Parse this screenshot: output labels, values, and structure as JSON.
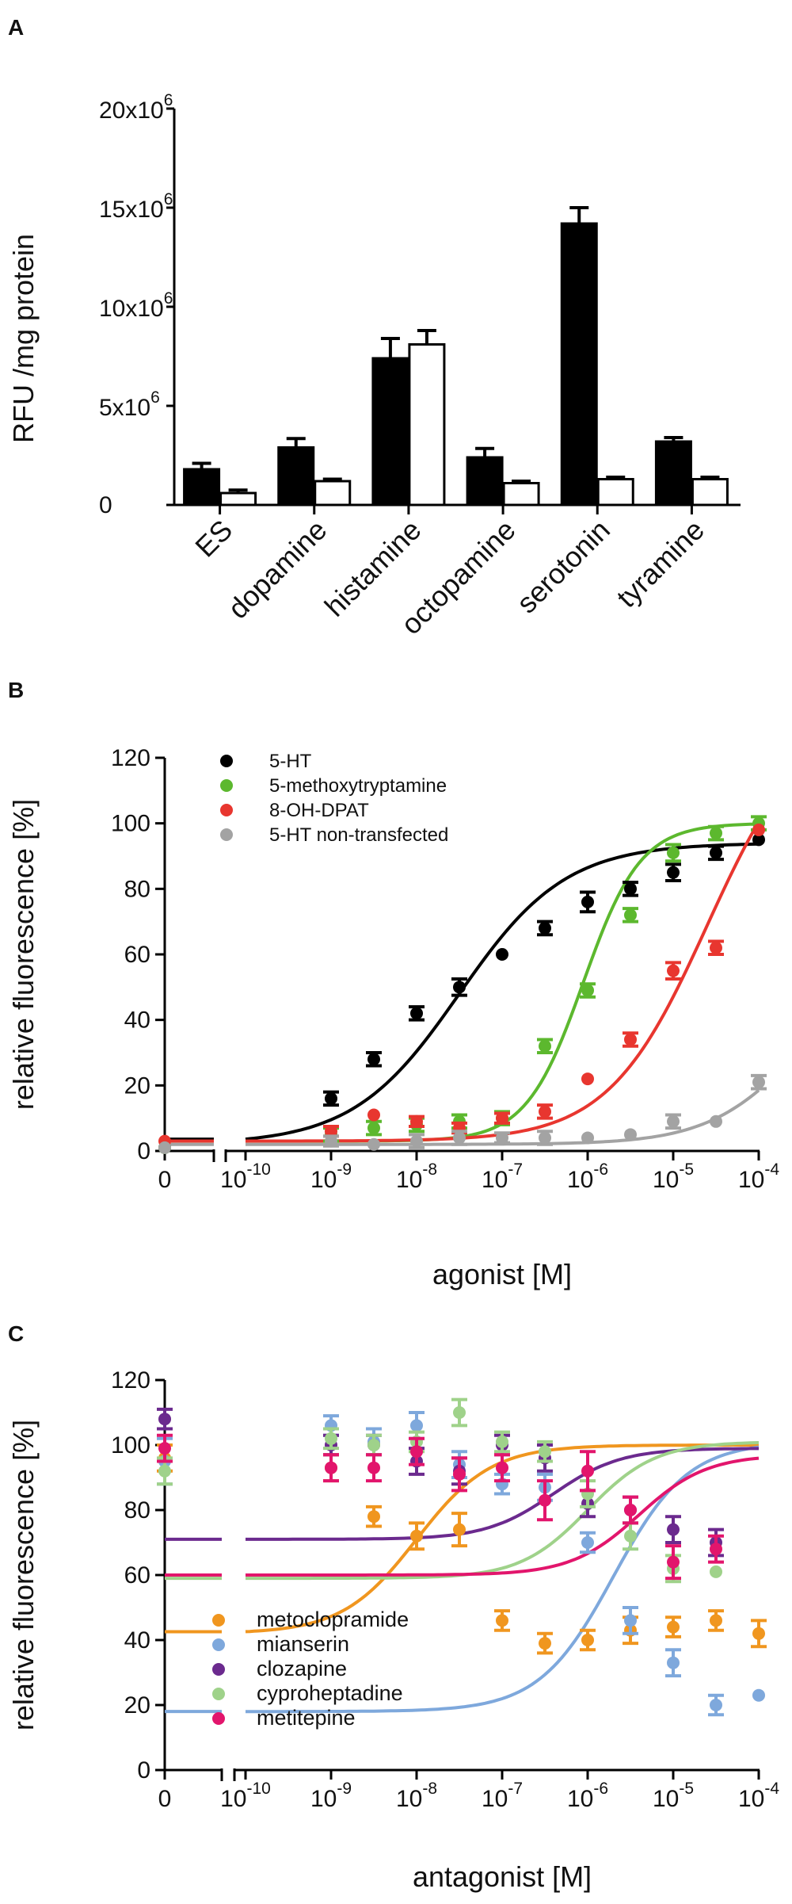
{
  "chart_data": [
    {
      "panel": "A",
      "type": "bar",
      "ylabel": "RFU /mg protein",
      "yticks": [
        {
          "value": 0,
          "base": "0",
          "exp": ""
        },
        {
          "value": 5000000,
          "base": "5x10",
          "exp": "6"
        },
        {
          "value": 10000000,
          "base": "10x10",
          "exp": "6"
        },
        {
          "value": 15000000,
          "base": "15x10",
          "exp": "6"
        },
        {
          "value": 20000000,
          "base": "20x10",
          "exp": "6"
        }
      ],
      "ylim": [
        0,
        20000000
      ],
      "categories": [
        "ES",
        "dopamine",
        "histamine",
        "octopamine",
        "serotonin",
        "tyramine"
      ],
      "series": [
        {
          "name": "filled",
          "color": "#000000",
          "values": [
            1800000,
            2900000,
            7400000,
            2400000,
            14200000,
            3200000
          ],
          "errors": [
            300000,
            450000,
            1000000,
            450000,
            800000,
            200000
          ]
        },
        {
          "name": "open",
          "color": "#ffffff",
          "values": [
            600000,
            1200000,
            8100000,
            1100000,
            1300000,
            1300000
          ],
          "errors": [
            150000,
            100000,
            700000,
            100000,
            100000,
            100000
          ]
        }
      ]
    },
    {
      "panel": "B",
      "type": "scatter",
      "xlabel": "agonist [M]",
      "ylabel": "relative fluorescence [%]",
      "ylim": [
        0,
        120
      ],
      "yticks": [
        "0",
        "20",
        "40",
        "60",
        "80",
        "100",
        "120"
      ],
      "xticks": [
        {
          "base": "0",
          "exp": ""
        },
        {
          "base": "10",
          "exp": "-10"
        },
        {
          "base": "10",
          "exp": "-9"
        },
        {
          "base": "10",
          "exp": "-8"
        },
        {
          "base": "10",
          "exp": "-7"
        },
        {
          "base": "10",
          "exp": "-6"
        },
        {
          "base": "10",
          "exp": "-5"
        },
        {
          "base": "10",
          "exp": "-4"
        }
      ],
      "xlim_log10": [
        -10,
        -4
      ],
      "series": [
        {
          "name": "5-HT",
          "color": "#000000",
          "points": [
            [
              0,
              1,
              0
            ],
            [
              -9,
              16,
              2
            ],
            [
              -8.5,
              28,
              2
            ],
            [
              -8,
              42,
              2
            ],
            [
              -7.5,
              50,
              2.5
            ],
            [
              -7,
              60,
              0
            ],
            [
              -6.5,
              68,
              2
            ],
            [
              -6,
              76,
              3
            ],
            [
              -5.5,
              80,
              2
            ],
            [
              -5,
              85,
              2.5
            ],
            [
              -4.5,
              91,
              2
            ],
            [
              -4,
              95,
              0
            ]
          ],
          "fit": {
            "bottom": 2,
            "top": 94,
            "log_ec50": -7.5,
            "hill": 0.7
          }
        },
        {
          "name": "5-methoxytryptamine",
          "color": "#5cb82e",
          "points": [
            [
              0,
              1,
              0
            ],
            [
              -9,
              5,
              2
            ],
            [
              -8.5,
              7,
              2
            ],
            [
              -8,
              8,
              2
            ],
            [
              -7.5,
              9,
              2
            ],
            [
              -7,
              10,
              2
            ],
            [
              -6.5,
              32,
              2
            ],
            [
              -6,
              49,
              2
            ],
            [
              -5.5,
              72,
              2
            ],
            [
              -5,
              91,
              2.5
            ],
            [
              -4.5,
              97,
              2
            ],
            [
              -4,
              100,
              2
            ]
          ],
          "fit": {
            "bottom": 3,
            "top": 100,
            "log_ec50": -6.05,
            "hill": 1.3
          }
        },
        {
          "name": "8-OH-DPAT",
          "color": "#e8362f",
          "points": [
            [
              0,
              3,
              0
            ],
            [
              -9,
              6,
              1.5
            ],
            [
              -8.5,
              11,
              0
            ],
            [
              -8,
              9,
              1.5
            ],
            [
              -7.5,
              7,
              1.5
            ],
            [
              -7,
              10,
              1.5
            ],
            [
              -6.5,
              12,
              2
            ],
            [
              -6,
              22,
              0
            ],
            [
              -5.5,
              34,
              2
            ],
            [
              -5,
              55,
              2.5
            ],
            [
              -4.5,
              62,
              2
            ],
            [
              -4,
              98,
              0
            ]
          ],
          "fit": {
            "bottom": 3,
            "top": 135,
            "log_ec50": -4.6,
            "hill": 0.75
          }
        },
        {
          "name": "5-HT non-transfected",
          "color": "#a3a3a3",
          "points": [
            [
              0,
              1,
              0
            ],
            [
              -9,
              3,
              1.5
            ],
            [
              -8.5,
              2,
              0
            ],
            [
              -8,
              3,
              2
            ],
            [
              -7.5,
              4,
              2
            ],
            [
              -7,
              4,
              1.5
            ],
            [
              -6.5,
              4,
              2
            ],
            [
              -6,
              4,
              0
            ],
            [
              -5.5,
              5,
              0
            ],
            [
              -5,
              9,
              2
            ],
            [
              -4.5,
              9,
              0
            ],
            [
              -4,
              21,
              2
            ]
          ],
          "fit": {
            "bottom": 2,
            "top": 60,
            "log_ec50": -3.5,
            "hill": 0.8
          }
        }
      ]
    },
    {
      "panel": "C",
      "type": "scatter",
      "xlabel": "antagonist [M]",
      "ylabel": "relative fluorescence [%]",
      "ylim": [
        0,
        120
      ],
      "yticks": [
        "0",
        "20",
        "40",
        "60",
        "80",
        "100",
        "120"
      ],
      "xticks": [
        {
          "base": "0",
          "exp": ""
        },
        {
          "base": "10",
          "exp": "-10"
        },
        {
          "base": "10",
          "exp": "-9"
        },
        {
          "base": "10",
          "exp": "-8"
        },
        {
          "base": "10",
          "exp": "-7"
        },
        {
          "base": "10",
          "exp": "-6"
        },
        {
          "base": "10",
          "exp": "-5"
        },
        {
          "base": "10",
          "exp": "-4"
        }
      ],
      "xlim_log10": [
        -10,
        -4
      ],
      "series": [
        {
          "name": "metoclopramide",
          "color": "#f0961f",
          "points": [
            [
              0,
              96,
              4
            ],
            [
              -9,
              93,
              4
            ],
            [
              -8.5,
              78,
              3
            ],
            [
              -8,
              72,
              4
            ],
            [
              -7.5,
              74,
              5
            ],
            [
              -7,
              46,
              3
            ],
            [
              -6.5,
              39,
              3
            ],
            [
              -6,
              40,
              3
            ],
            [
              -5.5,
              43,
              4
            ],
            [
              -5,
              44,
              3
            ],
            [
              -4.5,
              46,
              3
            ],
            [
              -4,
              42,
              4
            ]
          ],
          "fit": {
            "bottom": 42,
            "top": 100,
            "log_ec50": -8.0,
            "hill": 1.0
          }
        },
        {
          "name": "mianserin",
          "color": "#7ea8dc",
          "points": [
            [
              0,
              95,
              7
            ],
            [
              -9,
              106,
              3
            ],
            [
              -8.5,
              101,
              4
            ],
            [
              -8,
              106,
              4
            ],
            [
              -7.5,
              94,
              4
            ],
            [
              -7,
              88,
              3
            ],
            [
              -6.5,
              87,
              4
            ],
            [
              -6,
              70,
              3
            ],
            [
              -5.5,
              46,
              4
            ],
            [
              -5,
              33,
              4
            ],
            [
              -4.5,
              20,
              3
            ],
            [
              -4,
              23,
              0
            ]
          ],
          "fit": {
            "bottom": 18,
            "top": 101,
            "log_ec50": -5.7,
            "hill": 1.0
          }
        },
        {
          "name": "clozapine",
          "color": "#6b2a8e",
          "points": [
            [
              0,
              108,
              3
            ],
            [
              -9,
              100,
              3
            ],
            [
              -8.5,
              100,
              3
            ],
            [
              -8,
              95,
              4
            ],
            [
              -7.5,
              92,
              4
            ],
            [
              -7,
              100,
              3
            ],
            [
              -6.5,
              96,
              4
            ],
            [
              -6,
              82,
              4
            ],
            [
              -5.5,
              80,
              4
            ],
            [
              -5,
              74,
              4
            ],
            [
              -4.5,
              70,
              4
            ]
          ],
          "fit": {
            "bottom": 71,
            "top": 99,
            "log_ec50": -6.4,
            "hill": 1.1
          }
        },
        {
          "name": "cyproheptadine",
          "color": "#9fd28a",
          "points": [
            [
              0,
              92,
              4
            ],
            [
              -9,
              102,
              3
            ],
            [
              -8.5,
              100,
              3
            ],
            [
              -8,
              101,
              3
            ],
            [
              -7.5,
              110,
              4
            ],
            [
              -7,
              101,
              3
            ],
            [
              -6.5,
              98,
              3
            ],
            [
              -6,
              85,
              4
            ],
            [
              -5.5,
              72,
              4
            ],
            [
              -5,
              62,
              4
            ],
            [
              -4.5,
              61,
              0
            ]
          ],
          "fit": {
            "bottom": 59,
            "top": 101,
            "log_ec50": -6.0,
            "hill": 1.1
          }
        },
        {
          "name": "metitepine",
          "color": "#e2156c",
          "points": [
            [
              0,
              99,
              4
            ],
            [
              -9,
              93,
              4
            ],
            [
              -8.5,
              93,
              4
            ],
            [
              -8,
              98,
              4
            ],
            [
              -7.5,
              91,
              5
            ],
            [
              -7,
              93,
              4
            ],
            [
              -6.5,
              83,
              6
            ],
            [
              -6,
              92,
              6
            ],
            [
              -5.5,
              80,
              4
            ],
            [
              -5,
              64,
              5
            ],
            [
              -4.5,
              68,
              4
            ]
          ],
          "fit": {
            "bottom": 60,
            "top": 97,
            "log_ec50": -5.4,
            "hill": 1.1
          }
        }
      ]
    }
  ]
}
